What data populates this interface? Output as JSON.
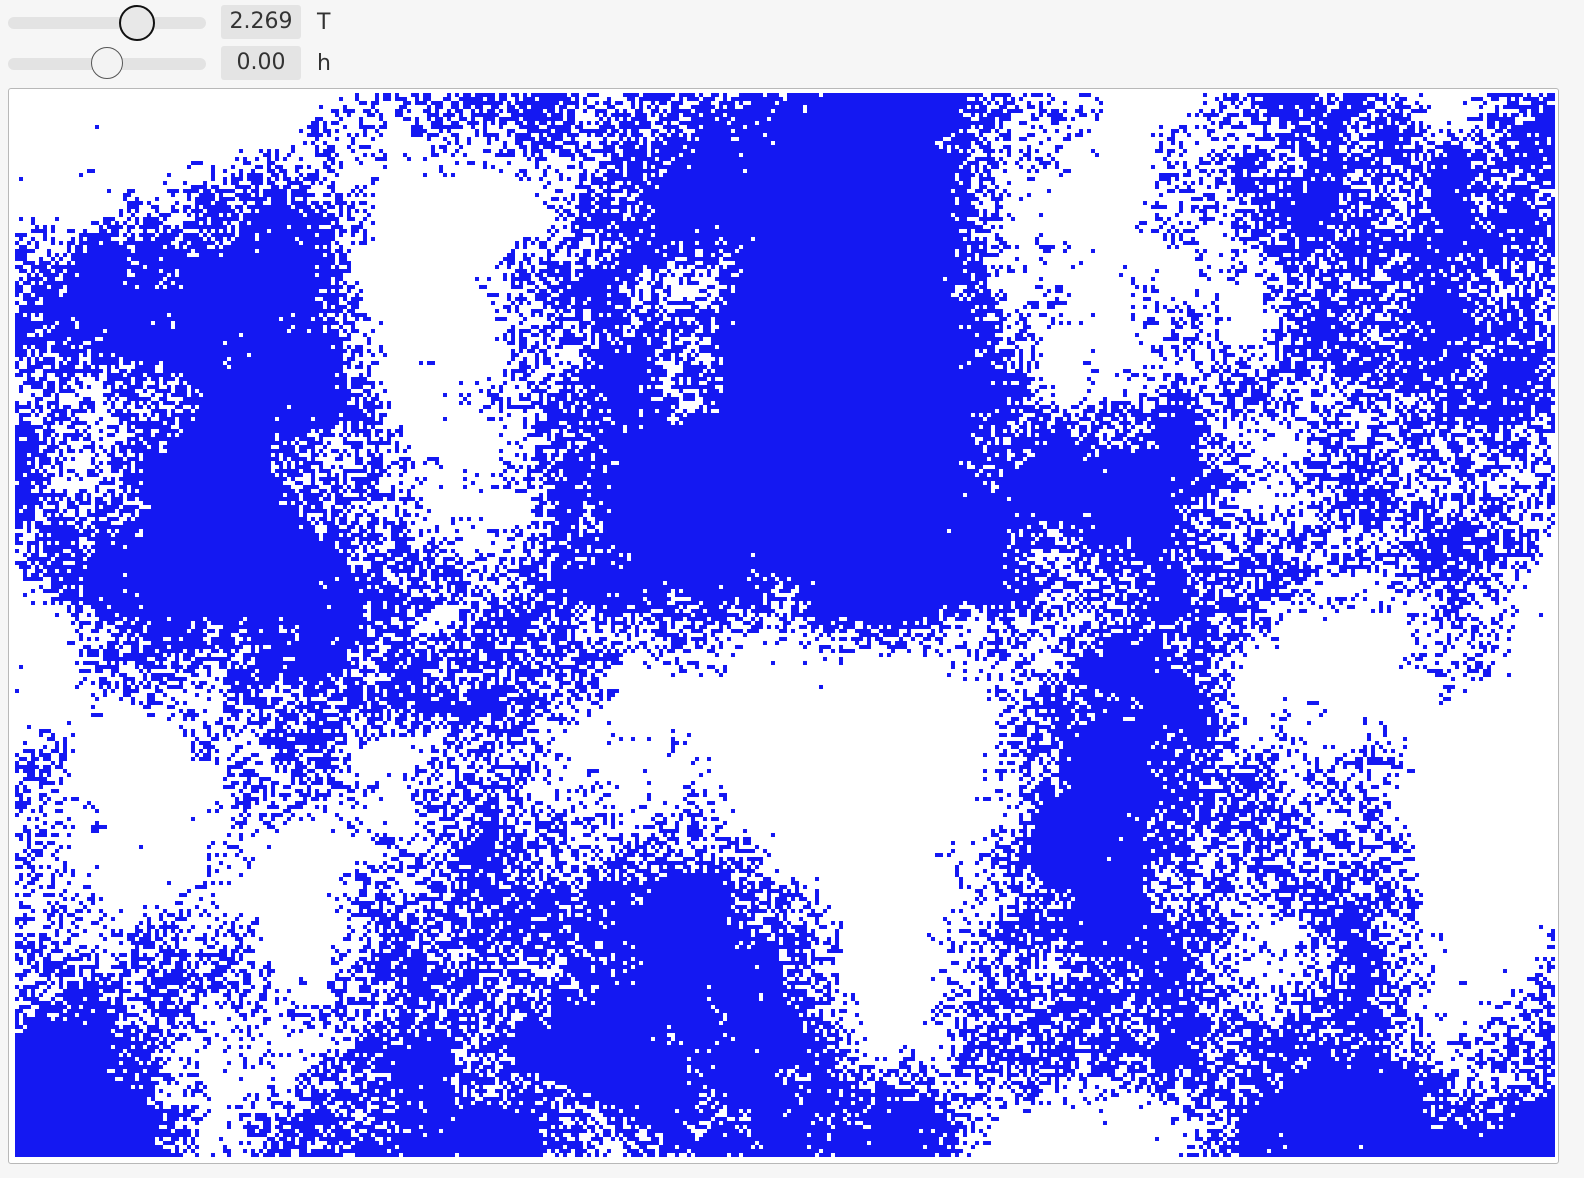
{
  "controls": {
    "temperature": {
      "label": "T",
      "value_text": "2.269",
      "slider_fraction": 0.65
    },
    "field": {
      "label": "h",
      "value_text": "0.00",
      "slider_fraction": 0.5
    }
  },
  "lattice": {
    "up_color": "#1418f2",
    "down_color": "#ffffff"
  }
}
